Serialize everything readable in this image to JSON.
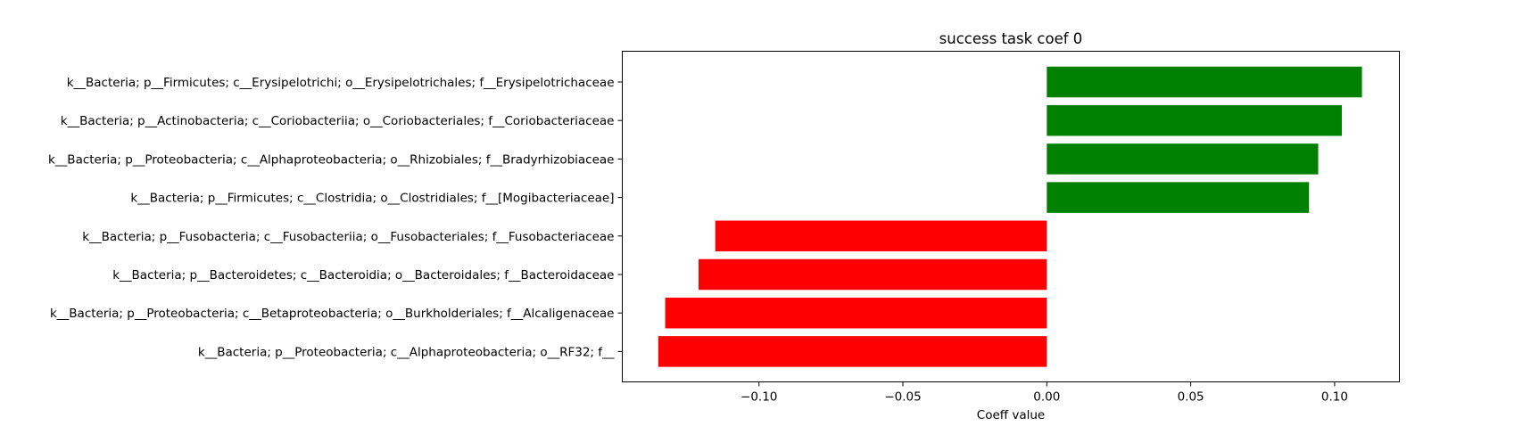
{
  "chart_data": {
    "type": "bar",
    "orientation": "horizontal",
    "title": "success task coef 0",
    "xlabel": "Coeff value",
    "ylabel": "",
    "xlim": [
      -0.1475,
      0.1225
    ],
    "xticks": [
      -0.1,
      -0.05,
      0.0,
      0.05,
      0.1
    ],
    "xtick_labels": [
      "−0.10",
      "−0.05",
      "0.00",
      "0.05",
      "0.10"
    ],
    "grid": false,
    "categories": [
      "k__Bacteria; p__Firmicutes; c__Erysipelotrichi; o__Erysipelotrichales; f__Erysipelotrichaceae",
      "k__Bacteria; p__Actinobacteria; c__Coriobacteriia; o__Coriobacteriales; f__Coriobacteriaceae",
      "k__Bacteria; p__Proteobacteria; c__Alphaproteobacteria; o__Rhizobiales; f__Bradyrhizobiaceae",
      "k__Bacteria; p__Firmicutes; c__Clostridia; o__Clostridiales; f__[Mogibacteriaceae]",
      "k__Bacteria; p__Fusobacteria; c__Fusobacteriia; o__Fusobacteriales; f__Fusobacteriaceae",
      "k__Bacteria; p__Bacteroidetes; c__Bacteroidia; o__Bacteroidales; f__Bacteroidaceae",
      "k__Bacteria; p__Proteobacteria; c__Betaproteobacteria; o__Burkholderiales; f__Alcaligenaceae",
      "k__Bacteria; p__Proteobacteria; c__Alphaproteobacteria; o__RF32; f__"
    ],
    "values": [
      0.1095,
      0.1025,
      0.0943,
      0.0911,
      -0.1152,
      -0.121,
      -0.1326,
      -0.135
    ],
    "colors": {
      "positive": "#008000",
      "negative": "#ff0000"
    }
  }
}
